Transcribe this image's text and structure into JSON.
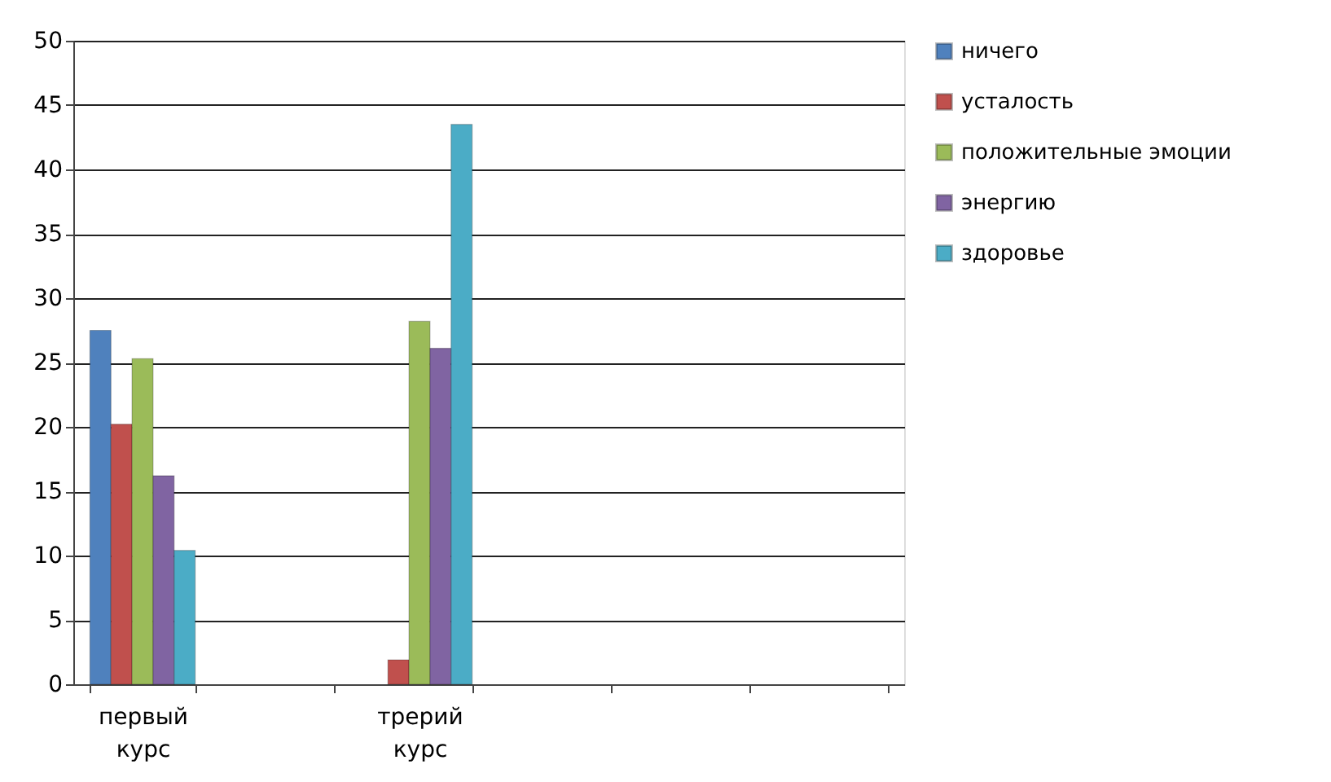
{
  "chart_data": {
    "type": "bar",
    "categories": [
      "первый курс",
      null,
      "трерий курс",
      null,
      null,
      null
    ],
    "series": [
      {
        "name": "ничего",
        "color": "#4f81bd",
        "values": [
          27.5,
          null,
          null,
          null,
          null,
          null
        ]
      },
      {
        "name": "усталость",
        "color": "#c0504d",
        "values": [
          20.2,
          null,
          1.9,
          null,
          null,
          null
        ]
      },
      {
        "name": "положительные эмоции",
        "color": "#9bbb59",
        "values": [
          25.3,
          null,
          28.2,
          null,
          null,
          null
        ]
      },
      {
        "name": "энергию",
        "color": "#8064a2",
        "values": [
          16.2,
          null,
          26.1,
          null,
          null,
          null
        ]
      },
      {
        "name": "здоровье",
        "color": "#4bacc6",
        "values": [
          10.4,
          null,
          43.5,
          null,
          null,
          null
        ]
      }
    ],
    "ylim": [
      0,
      50
    ],
    "yticks": [
      0,
      5,
      10,
      15,
      20,
      25,
      30,
      35,
      40,
      45,
      50
    ],
    "grid": "y",
    "legend": "right"
  }
}
